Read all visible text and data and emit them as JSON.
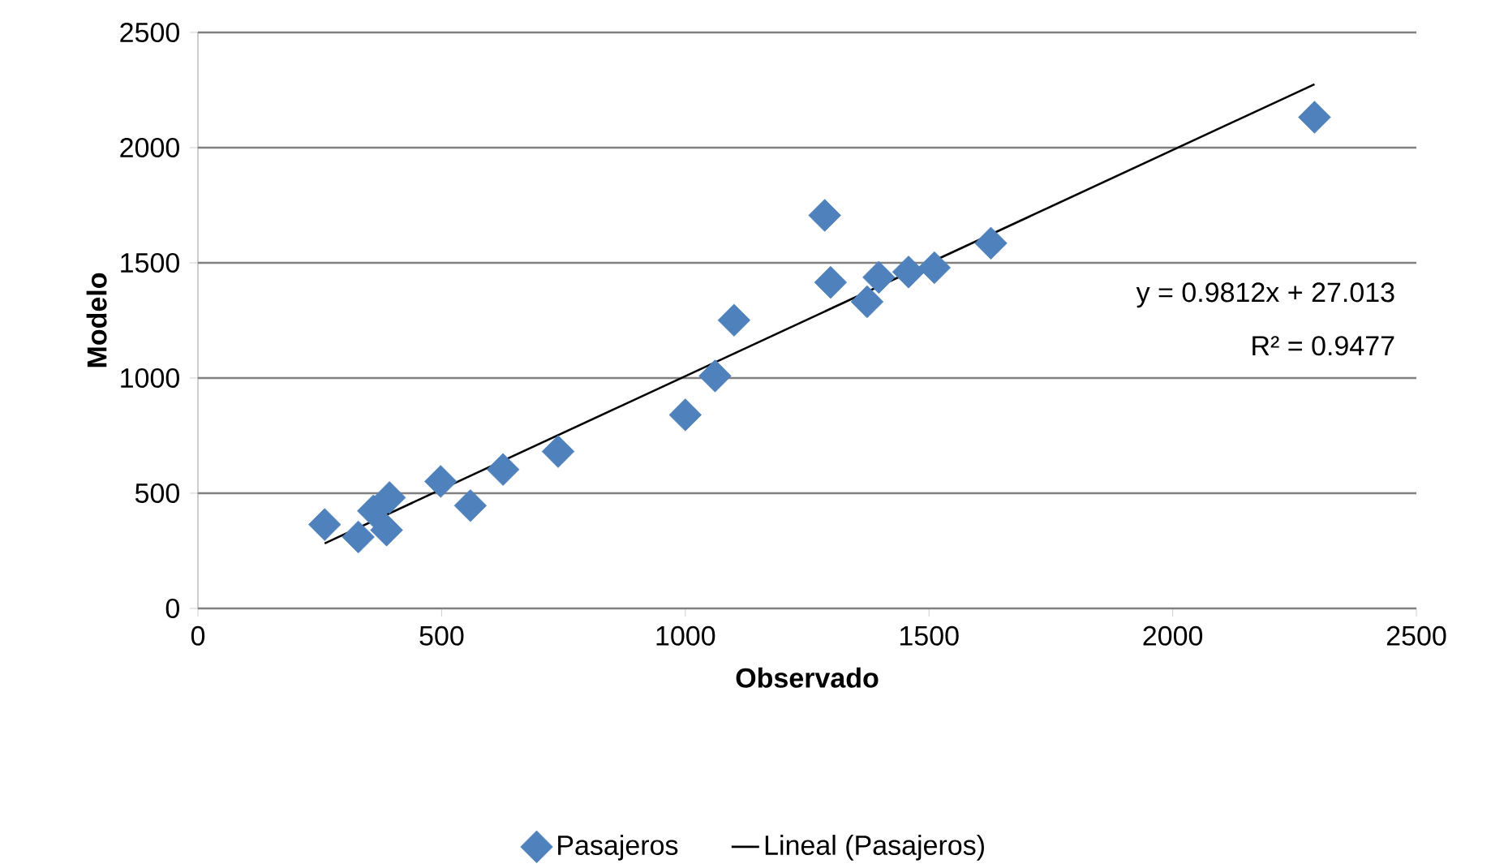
{
  "chart_data": {
    "type": "scatter",
    "xlabel": "Observado",
    "ylabel": "Modelo",
    "xlim": [
      0,
      2500
    ],
    "xticks": [
      0,
      500,
      1000,
      1500,
      2000,
      2500
    ],
    "ylim": [
      0,
      2500
    ],
    "yticks": [
      0,
      500,
      1000,
      1500,
      2000,
      2500
    ],
    "grid": "y",
    "legend": "bottom",
    "annotations": [
      "y = 0.9812x + 27.013",
      "R² = 0.9477"
    ],
    "series": [
      {
        "name": "Pasajeros",
        "type": "scatter",
        "marker": "diamond",
        "color": "#4f81bd",
        "x": [
          260,
          329,
          360,
          393,
          387,
          498,
          559,
          626,
          739,
          1000,
          1061,
          1100,
          1286,
          1298,
          1373,
          1397,
          1458,
          1511,
          1627,
          2291
        ],
        "values": [
          364,
          310,
          423,
          481,
          340,
          551,
          446,
          603,
          681,
          840,
          1009,
          1251,
          1706,
          1415,
          1331,
          1437,
          1460,
          1479,
          1585,
          2132
        ]
      },
      {
        "name": "Lineal (Pasajeros)",
        "type": "line",
        "line_style": "solid",
        "color": "#000000",
        "x": [
          260,
          2291
        ],
        "values": [
          282,
          2275
        ]
      }
    ]
  }
}
